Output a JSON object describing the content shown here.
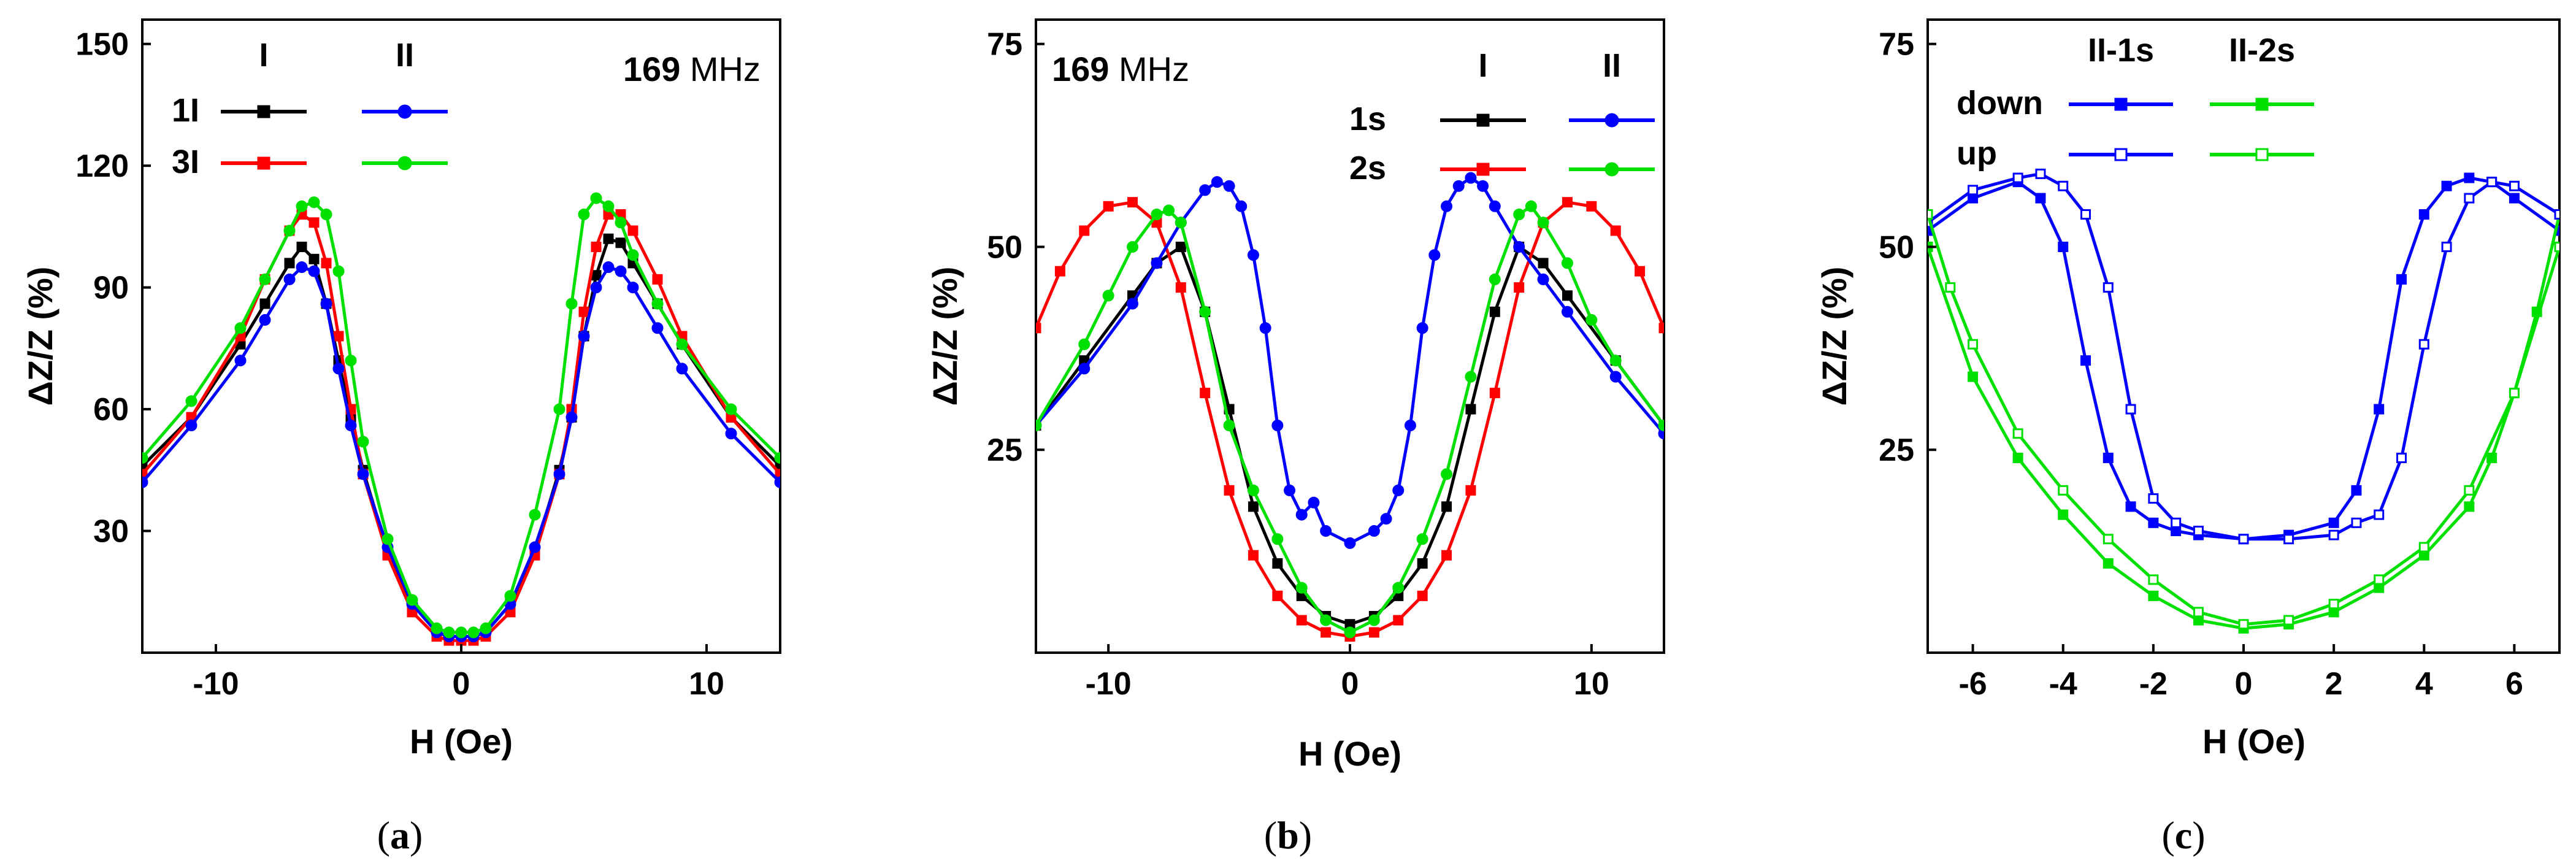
{
  "chart_data": [
    {
      "type": "line",
      "panel_label": "a",
      "frequency_value": "169",
      "frequency_unit": "MHz",
      "xlabel": "H (Oe)",
      "ylabel": "ΔZ/Z (%)",
      "xlim": [
        -13,
        13
      ],
      "ylim": [
        0,
        156
      ],
      "xticks": [
        -10,
        0,
        10
      ],
      "yticks": [
        30,
        60,
        90,
        120,
        150
      ],
      "legend_columns": [
        "I",
        "II"
      ],
      "legend_rows": [
        "1I",
        "3I"
      ],
      "series": [
        {
          "name": "1I I",
          "color": "#000000",
          "marker": "square",
          "filled": true,
          "x": [
            -13,
            -11,
            -9,
            -8,
            -7,
            -6.5,
            -6,
            -5.5,
            -5,
            -4.5,
            -4,
            -3,
            -2,
            -1,
            -0.5,
            0,
            0.5,
            1,
            2,
            3,
            4,
            4.5,
            5,
            5.5,
            6,
            6.5,
            7,
            8,
            9,
            11,
            13
          ],
          "y": [
            46,
            58,
            76,
            86,
            96,
            100,
            97,
            86,
            72,
            58,
            45,
            25,
            12,
            5,
            4,
            4,
            4,
            5,
            12,
            25,
            45,
            58,
            78,
            93,
            102,
            101,
            96,
            86,
            76,
            58,
            46
          ]
        },
        {
          "name": "3I I",
          "color": "#ff0000",
          "marker": "square",
          "filled": true,
          "x": [
            -13,
            -11,
            -9,
            -8,
            -7,
            -6.5,
            -6,
            -5.5,
            -5,
            -4.5,
            -4,
            -3,
            -2,
            -1,
            -0.5,
            0,
            0.5,
            1,
            2,
            3,
            4,
            4.5,
            5,
            5.5,
            6,
            6.5,
            7,
            8,
            9,
            11,
            13
          ],
          "y": [
            44,
            58,
            78,
            92,
            104,
            108,
            106,
            96,
            78,
            60,
            44,
            24,
            10,
            4,
            3,
            3,
            3,
            4,
            10,
            24,
            44,
            60,
            84,
            100,
            108,
            108,
            104,
            92,
            78,
            58,
            44
          ]
        },
        {
          "name": "1I II",
          "color": "#0000ff",
          "marker": "circle",
          "filled": true,
          "x": [
            -13,
            -11,
            -9,
            -8,
            -7,
            -6.5,
            -6,
            -5.5,
            -5,
            -4.5,
            -4,
            -3,
            -2,
            -1,
            -0.5,
            0,
            0.5,
            1,
            2,
            3,
            4,
            4.5,
            5,
            5.5,
            6,
            6.5,
            7,
            8,
            9,
            11,
            13
          ],
          "y": [
            42,
            56,
            72,
            82,
            92,
            95,
            94,
            86,
            70,
            56,
            44,
            26,
            12,
            5,
            4,
            4,
            4,
            5,
            12,
            26,
            44,
            58,
            78,
            90,
            95,
            94,
            90,
            80,
            70,
            54,
            42
          ]
        },
        {
          "name": "3I II",
          "color": "#00e000",
          "marker": "circle",
          "filled": true,
          "x": [
            -13,
            -11,
            -9,
            -8,
            -7,
            -6.5,
            -6,
            -5.5,
            -5,
            -4.5,
            -4,
            -3,
            -2,
            -1,
            -0.5,
            0,
            0.5,
            1,
            2,
            3,
            4,
            4.5,
            5,
            5.5,
            6,
            6.5,
            7,
            8,
            9,
            11,
            13
          ],
          "y": [
            48,
            62,
            80,
            92,
            104,
            110,
            111,
            108,
            94,
            72,
            52,
            28,
            13,
            6,
            5,
            5,
            5,
            6,
            14,
            34,
            60,
            86,
            108,
            112,
            110,
            106,
            98,
            86,
            76,
            60,
            48
          ]
        }
      ]
    },
    {
      "type": "line",
      "panel_label": "b",
      "frequency_value": "169",
      "frequency_unit": "MHz",
      "xlabel": "H (Oe)",
      "ylabel": "ΔZ/Z (%)",
      "xlim": [
        -13,
        13
      ],
      "ylim": [
        0,
        78
      ],
      "xticks": [
        -10,
        0,
        10
      ],
      "yticks": [
        25,
        50,
        75
      ],
      "legend_columns": [
        "I",
        "II"
      ],
      "legend_rows": [
        "1s",
        "2s"
      ],
      "series": [
        {
          "name": "1s I",
          "color": "#000000",
          "marker": "square",
          "filled": true,
          "x": [
            -13,
            -11,
            -9,
            -8,
            -7,
            -6,
            -5,
            -4,
            -3,
            -2,
            -1,
            0,
            1,
            2,
            3,
            4,
            5,
            6,
            7,
            8,
            9,
            11,
            13
          ],
          "y": [
            28,
            36,
            44,
            48,
            50,
            42,
            30,
            18,
            11,
            7,
            4.5,
            3.5,
            4.5,
            7,
            11,
            18,
            30,
            42,
            50,
            48,
            44,
            36,
            28
          ]
        },
        {
          "name": "2s I",
          "color": "#ff0000",
          "marker": "square",
          "filled": true,
          "x": [
            -13,
            -12,
            -11,
            -10,
            -9,
            -8,
            -7,
            -6,
            -5,
            -4,
            -3,
            -2,
            -1,
            0,
            1,
            2,
            3,
            4,
            5,
            6,
            7,
            8,
            9,
            10,
            11,
            12,
            13
          ],
          "y": [
            40,
            47,
            52,
            55,
            55.5,
            53,
            45,
            32,
            20,
            12,
            7,
            4,
            2.5,
            2,
            2.5,
            4,
            7,
            12,
            20,
            32,
            45,
            53,
            55.5,
            55,
            52,
            47,
            40
          ]
        },
        {
          "name": "1s II",
          "color": "#0000ff",
          "marker": "circle",
          "filled": true,
          "x": [
            -13,
            -11,
            -9,
            -8,
            -7,
            -6,
            -5.5,
            -5,
            -4.5,
            -4,
            -3.5,
            -3,
            -2.5,
            -2,
            -1.5,
            -1,
            0,
            1,
            1.5,
            2,
            2.5,
            3,
            3.5,
            4,
            4.5,
            5,
            5.5,
            6,
            7,
            8,
            9,
            11,
            13
          ],
          "y": [
            28,
            35,
            43,
            48,
            53,
            57,
            58,
            57.5,
            55,
            49,
            40,
            28,
            20,
            17,
            18.5,
            15,
            13.5,
            15,
            16.5,
            20,
            28,
            40,
            49,
            55,
            57.5,
            58.5,
            57.5,
            55,
            50,
            46,
            42,
            34,
            27
          ]
        },
        {
          "name": "2s II",
          "color": "#00e000",
          "marker": "circle",
          "filled": true,
          "x": [
            -13,
            -11,
            -10,
            -9,
            -8,
            -7.5,
            -7,
            -6,
            -5,
            -4,
            -3,
            -2,
            -1,
            0,
            1,
            2,
            3,
            4,
            5,
            6,
            7,
            7.5,
            8,
            9,
            10,
            11,
            13
          ],
          "y": [
            28,
            38,
            44,
            50,
            54,
            54.5,
            53,
            42,
            28,
            20,
            14,
            8,
            4,
            2.5,
            4,
            8,
            14,
            22,
            34,
            46,
            54,
            55,
            53,
            48,
            41,
            36,
            28
          ]
        }
      ]
    },
    {
      "type": "line",
      "panel_label": "c",
      "xlabel": "H (Oe)",
      "ylabel": "ΔZ/Z (%)",
      "xlim": [
        -7,
        7
      ],
      "ylim": [
        0,
        78
      ],
      "xticks": [
        -6,
        -4,
        -2,
        0,
        2,
        4,
        6
      ],
      "yticks": [
        25,
        50,
        75
      ],
      "legend_columns": [
        "II-1s",
        "II-2s"
      ],
      "legend_rows": [
        "down",
        "up"
      ],
      "series": [
        {
          "name": "II-1s down",
          "color": "#0000ff",
          "marker": "square",
          "filled": true,
          "x": [
            -7,
            -6,
            -5,
            -4.5,
            -4,
            -3.5,
            -3,
            -2.5,
            -2,
            -1.5,
            -1,
            0,
            1,
            2,
            2.5,
            3,
            3.5,
            4,
            4.5,
            5,
            5.5,
            6,
            7
          ],
          "y": [
            52,
            56,
            58,
            56,
            50,
            36,
            24,
            18,
            16,
            15,
            14.5,
            14,
            14.5,
            16,
            20,
            30,
            46,
            54,
            57.5,
            58.5,
            58,
            56,
            52
          ]
        },
        {
          "name": "II-2s down",
          "color": "#00e000",
          "marker": "square",
          "filled": true,
          "x": [
            -7,
            -6,
            -5,
            -4,
            -3,
            -2,
            -1,
            0,
            1,
            2,
            3,
            4,
            5,
            5.5,
            6,
            6.5,
            7
          ],
          "y": [
            50,
            34,
            24,
            17,
            11,
            7,
            4,
            3,
            3.5,
            5,
            8,
            12,
            18,
            24,
            32,
            42,
            54
          ]
        },
        {
          "name": "II-1s up",
          "color": "#0000ff",
          "marker": "square",
          "filled": false,
          "x": [
            -7,
            -6,
            -5,
            -4.5,
            -4,
            -3.5,
            -3,
            -2.5,
            -2,
            -1.5,
            -1,
            0,
            1,
            2,
            2.5,
            3,
            3.5,
            4,
            4.5,
            5,
            5.5,
            6,
            7
          ],
          "y": [
            53,
            57,
            58.5,
            59,
            57.5,
            54,
            45,
            30,
            19,
            16,
            15,
            14,
            14,
            14.5,
            16,
            17,
            24,
            38,
            50,
            56,
            58,
            57.5,
            54
          ]
        },
        {
          "name": "II-2s up",
          "color": "#00e000",
          "marker": "square",
          "filled": false,
          "x": [
            -7,
            -6.5,
            -6,
            -5,
            -4,
            -3,
            -2,
            -1,
            0,
            1,
            2,
            3,
            4,
            5,
            6,
            7
          ],
          "y": [
            54,
            45,
            38,
            27,
            20,
            14,
            9,
            5,
            3.5,
            4,
            6,
            9,
            13,
            20,
            32,
            50
          ]
        }
      ]
    }
  ]
}
